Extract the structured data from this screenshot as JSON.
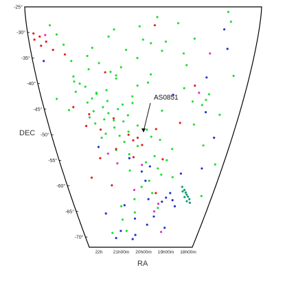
{
  "chart_data": {
    "type": "scatter",
    "title": "",
    "xlabel": "RA",
    "ylabel": "DEC",
    "colors": {
      "green": "#22dd33",
      "red": "#e02020",
      "blue": "#2233cc",
      "magenta": "#dd33cc",
      "teal": "#14997a"
    },
    "x_ticks": [
      "22h",
      "21h00m",
      "20h00m",
      "19h00m",
      "18h00m"
    ],
    "y_ticks": [
      "-25°",
      "-30°",
      "-35°",
      "-40°",
      "-45°",
      "-50°",
      "-55°",
      "-60°",
      "-65°",
      "-70°"
    ],
    "xlim": [
      "22h",
      "18h"
    ],
    "ylim": [
      -72,
      -25
    ],
    "grid": false,
    "annotation": {
      "text": "AS0851"
    },
    "series": [
      {
        "color": "green",
        "points": [
          [
            18.56,
            -26.0
          ],
          [
            19.76,
            -27.0
          ],
          [
            18.5,
            -27.9
          ],
          [
            19.4,
            -28.2
          ],
          [
            21.6,
            -28.6
          ],
          [
            20.06,
            -28.8
          ],
          [
            20.5,
            -29.4
          ],
          [
            21.5,
            -30.4
          ],
          [
            20.6,
            -30.8
          ],
          [
            19.1,
            -31.2
          ],
          [
            20.0,
            -31.4
          ],
          [
            19.6,
            -31.8
          ],
          [
            19.86,
            -32.1
          ],
          [
            21.4,
            -32.4
          ],
          [
            20.9,
            -33.0
          ],
          [
            20.3,
            -33.4
          ],
          [
            19.66,
            -33.6
          ],
          [
            19.27,
            -34.1
          ],
          [
            21.0,
            -34.6
          ],
          [
            20.1,
            -35.0
          ],
          [
            21.3,
            -35.6
          ],
          [
            20.8,
            -36.0
          ],
          [
            19.2,
            -36.4
          ],
          [
            20.4,
            -36.8
          ],
          [
            21.0,
            -37.2
          ],
          [
            20.6,
            -37.7
          ],
          [
            19.85,
            -38.2
          ],
          [
            21.3,
            -38.6
          ],
          [
            20.5,
            -39.0
          ],
          [
            21.3,
            -39.6
          ],
          [
            21.2,
            -40.0
          ],
          [
            20.1,
            -40.4
          ],
          [
            21.1,
            -40.6
          ],
          [
            19.2,
            -40.9
          ],
          [
            20.7,
            -41.3
          ],
          [
            21.3,
            -41.6
          ],
          [
            20.9,
            -42.0
          ],
          [
            18.7,
            -42.1
          ],
          [
            20.2,
            -42.5
          ],
          [
            21.0,
            -42.9
          ],
          [
            18.74,
            -43.2
          ],
          [
            20.7,
            -43.4
          ],
          [
            21.1,
            -43.7
          ],
          [
            20.4,
            -44.1
          ],
          [
            18.8,
            -44.2
          ],
          [
            20.8,
            -44.6
          ],
          [
            20.5,
            -45.0
          ],
          [
            21.0,
            -45.4
          ],
          [
            20.7,
            -45.8
          ],
          [
            20.3,
            -46.2
          ],
          [
            21.1,
            -46.6
          ],
          [
            20.8,
            -47.0
          ],
          [
            20.4,
            -47.4
          ],
          [
            21.0,
            -47.8
          ],
          [
            20.1,
            -48.2
          ],
          [
            20.6,
            -48.6
          ],
          [
            19.9,
            -49.0
          ],
          [
            20.3,
            -49.4
          ],
          [
            20.8,
            -49.8
          ],
          [
            20.5,
            -50.2
          ],
          [
            20.9,
            -50.6
          ],
          [
            19.6,
            -51.0
          ],
          [
            20.4,
            -51.4
          ],
          [
            20.1,
            -52.2
          ],
          [
            20.6,
            -53.0
          ],
          [
            19.7,
            -54.2
          ],
          [
            19.4,
            -55.0
          ],
          [
            19.9,
            -55.4
          ],
          [
            19.6,
            -56.6
          ],
          [
            20.3,
            -57.0
          ],
          [
            19.5,
            -57.8
          ],
          [
            19.8,
            -59.0
          ],
          [
            20.0,
            -60.2
          ],
          [
            19.7,
            -61.4
          ],
          [
            20.2,
            -62.6
          ],
          [
            20.6,
            -64.0
          ],
          [
            20.2,
            -65.2
          ],
          [
            20.6,
            -66.6
          ],
          [
            20.5,
            -68.8
          ],
          [
            21.0,
            -69.2
          ],
          [
            20.5,
            -38.4
          ],
          [
            19.9,
            -39.8
          ],
          [
            20.9,
            -41.8
          ],
          [
            20.2,
            -43.8
          ],
          [
            19.6,
            -45.3
          ],
          [
            20.6,
            -47.2
          ],
          [
            19.8,
            -50.4
          ],
          [
            19.3,
            -52.8
          ],
          [
            18.9,
            -48.0
          ],
          [
            19.0,
            -43.5
          ],
          [
            18.6,
            -52.1
          ],
          [
            19.2,
            -58.3
          ],
          [
            21.5,
            -45.2
          ],
          [
            21.7,
            -43.0
          ],
          [
            20.3,
            -53.8
          ],
          [
            19.5,
            -64.3
          ],
          [
            18.3,
            -38.5
          ],
          [
            18.4,
            -46.1
          ],
          [
            18.2,
            -55.8
          ],
          [
            18.3,
            -62.0
          ]
        ]
      },
      {
        "color": "red",
        "points": [
          [
            21.9,
            -30.2
          ],
          [
            21.8,
            -30.8
          ],
          [
            21.9,
            -31.4
          ],
          [
            21.7,
            -31.8
          ],
          [
            21.8,
            -32.6
          ],
          [
            21.6,
            -33.4
          ],
          [
            21.4,
            -34.3
          ],
          [
            20.7,
            -37.8
          ],
          [
            21.4,
            -44.6
          ],
          [
            21.1,
            -46.0
          ],
          [
            20.6,
            -46.8
          ],
          [
            21.2,
            -48.3
          ],
          [
            20.9,
            -49.0
          ],
          [
            20.6,
            -52.8
          ],
          [
            21.0,
            -54.6
          ],
          [
            20.3,
            -50.0
          ],
          [
            20.2,
            -51.1
          ],
          [
            20.1,
            -50.6
          ],
          [
            20.0,
            -52.0
          ],
          [
            20.2,
            -54.4
          ],
          [
            19.7,
            -48.9
          ],
          [
            19.5,
            -54.8
          ],
          [
            19.6,
            -61.4
          ],
          [
            20.8,
            -59.9
          ],
          [
            21.3,
            -58.4
          ],
          [
            19.8,
            -28.6
          ],
          [
            19.0,
            -40.4
          ],
          [
            19.2,
            -47.7
          ]
        ]
      },
      {
        "color": "blue",
        "points": [
          [
            21.8,
            -35.6
          ],
          [
            21.0,
            -52.4
          ],
          [
            20.3,
            -54.6
          ],
          [
            19.8,
            -56.2
          ],
          [
            20.0,
            -57.2
          ],
          [
            19.9,
            -59.0
          ],
          [
            19.0,
            -57.6
          ],
          [
            19.2,
            -61.4
          ],
          [
            19.8,
            -62.6
          ],
          [
            20.5,
            -63.8
          ],
          [
            21.1,
            -65.4
          ],
          [
            20.2,
            -66.4
          ],
          [
            19.8,
            -67.6
          ],
          [
            20.7,
            -68.8
          ],
          [
            19.2,
            -68.2
          ],
          [
            19.0,
            -64.0
          ],
          [
            19.6,
            -66.0
          ],
          [
            20.3,
            -70.4
          ],
          [
            20.2,
            -69.6
          ],
          [
            20.9,
            -70.2
          ],
          [
            18.6,
            -29.4
          ],
          [
            18.5,
            -33.2
          ],
          [
            18.4,
            -50.6
          ],
          [
            18.5,
            -56.6
          ],
          [
            18.8,
            -38.8
          ],
          [
            18.7,
            -45.6
          ],
          [
            19.4,
            -42.2
          ],
          [
            19.3,
            -62.3
          ],
          [
            19.4,
            -63.1
          ],
          [
            19.1,
            -62.8
          ]
        ]
      },
      {
        "color": "magenta",
        "points": [
          [
            21.7,
            -30.5
          ],
          [
            20.8,
            -53.7
          ],
          [
            20.0,
            -55.9
          ],
          [
            20.2,
            -60.8
          ],
          [
            19.5,
            -63.5
          ],
          [
            19.6,
            -65.0
          ],
          [
            19.3,
            -69.0
          ],
          [
            20.6,
            -55.6
          ],
          [
            18.8,
            -34.1
          ],
          [
            18.9,
            -41.8
          ]
        ]
      },
      {
        "color": "teal",
        "points": [
          [
            18.9,
            -60.2
          ],
          [
            18.82,
            -60.8
          ],
          [
            18.77,
            -61.3
          ],
          [
            18.86,
            -61.1
          ],
          [
            18.73,
            -61.7
          ],
          [
            18.68,
            -62.1
          ],
          [
            18.77,
            -62.2
          ],
          [
            18.62,
            -62.6
          ],
          [
            18.68,
            -63.0
          ],
          [
            18.58,
            -63.3
          ]
        ]
      }
    ]
  }
}
